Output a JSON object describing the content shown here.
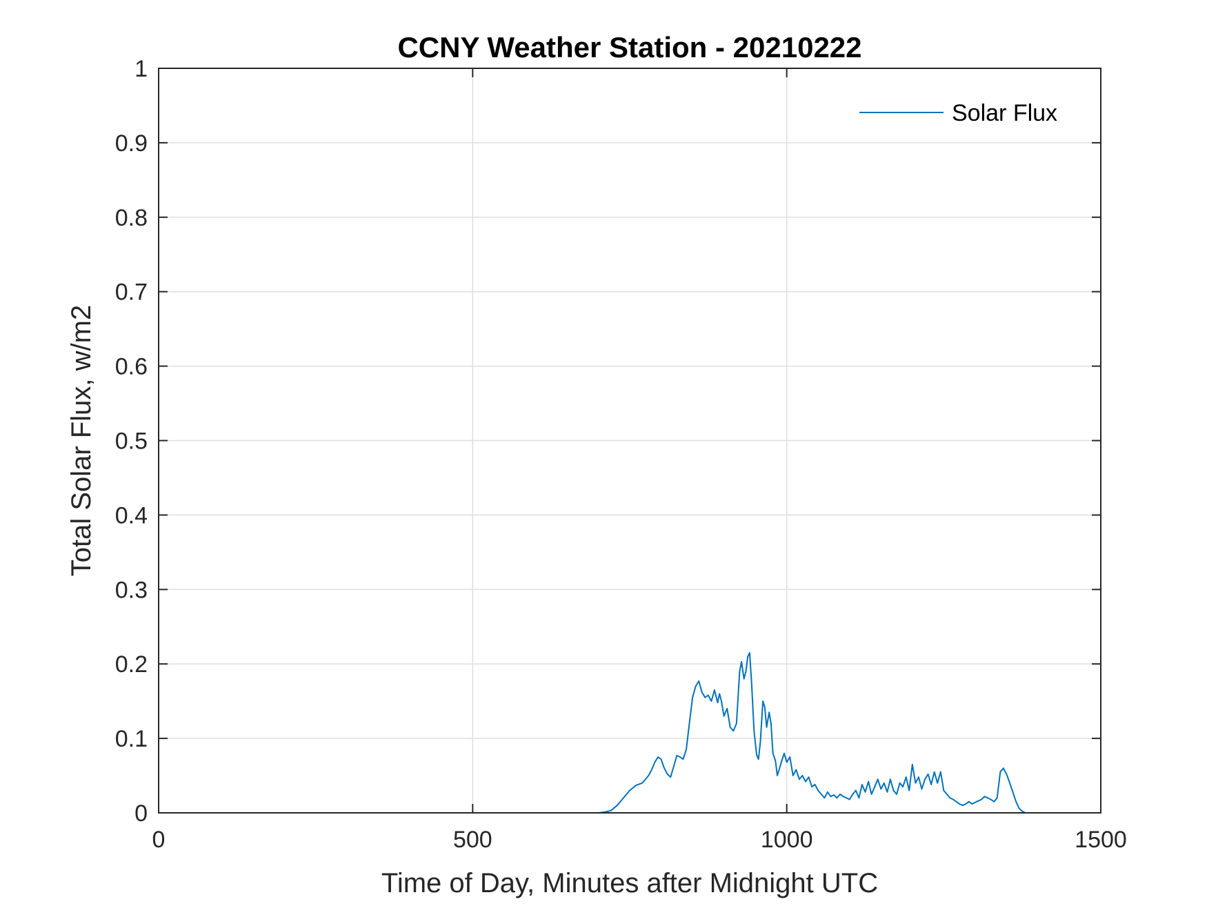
{
  "chart_data": {
    "type": "line",
    "title": "CCNY Weather Station - 20210222",
    "xlabel": "Time of Day, Minutes after Midnight UTC",
    "ylabel": "Total Solar Flux, w/m2",
    "xlim": [
      0,
      1500
    ],
    "ylim": [
      0,
      1
    ],
    "xticks": [
      0,
      500,
      1000,
      1500
    ],
    "xtick_labels": [
      "0",
      "500",
      "1000",
      "1500"
    ],
    "yticks": [
      0,
      0.1,
      0.2,
      0.3,
      0.4,
      0.5,
      0.6,
      0.7,
      0.8,
      0.9,
      1
    ],
    "ytick_labels": [
      "0",
      "0.1",
      "0.2",
      "0.3",
      "0.4",
      "0.5",
      "0.6",
      "0.7",
      "0.8",
      "0.9",
      "1"
    ],
    "grid": true,
    "legend_position": "top-right",
    "series": [
      {
        "name": "Solar Flux",
        "color": "#0072BD",
        "x": [
          0,
          700,
          710,
          720,
          730,
          740,
          750,
          760,
          770,
          775,
          780,
          785,
          790,
          795,
          800,
          805,
          810,
          815,
          820,
          825,
          830,
          835,
          840,
          845,
          850,
          855,
          860,
          865,
          870,
          875,
          880,
          885,
          890,
          893,
          896,
          900,
          905,
          910,
          915,
          920,
          925,
          928,
          932,
          935,
          938,
          941,
          944,
          948,
          952,
          955,
          958,
          962,
          965,
          968,
          972,
          975,
          978,
          982,
          985,
          988,
          992,
          996,
          1000,
          1005,
          1010,
          1015,
          1020,
          1025,
          1030,
          1035,
          1040,
          1045,
          1050,
          1055,
          1060,
          1065,
          1070,
          1075,
          1080,
          1085,
          1090,
          1095,
          1100,
          1105,
          1110,
          1115,
          1120,
          1125,
          1130,
          1135,
          1140,
          1145,
          1150,
          1155,
          1160,
          1165,
          1170,
          1175,
          1180,
          1185,
          1190,
          1195,
          1200,
          1205,
          1210,
          1215,
          1220,
          1225,
          1230,
          1235,
          1240,
          1245,
          1250,
          1255,
          1260,
          1265,
          1270,
          1275,
          1280,
          1285,
          1290,
          1295,
          1300,
          1305,
          1310,
          1315,
          1320,
          1325,
          1330,
          1335,
          1340,
          1345,
          1350,
          1355,
          1360,
          1365,
          1370,
          1375,
          1380,
          1385,
          1440
        ],
        "y": [
          0,
          0,
          0.001,
          0.003,
          0.01,
          0.02,
          0.03,
          0.037,
          0.04,
          0.045,
          0.05,
          0.058,
          0.068,
          0.075,
          0.072,
          0.06,
          0.052,
          0.048,
          0.062,
          0.077,
          0.075,
          0.072,
          0.085,
          0.12,
          0.155,
          0.17,
          0.177,
          0.162,
          0.155,
          0.158,
          0.15,
          0.165,
          0.148,
          0.16,
          0.15,
          0.13,
          0.14,
          0.115,
          0.11,
          0.12,
          0.19,
          0.203,
          0.18,
          0.19,
          0.21,
          0.215,
          0.175,
          0.11,
          0.078,
          0.072,
          0.095,
          0.15,
          0.142,
          0.115,
          0.135,
          0.12,
          0.08,
          0.07,
          0.05,
          0.058,
          0.07,
          0.08,
          0.068,
          0.075,
          0.05,
          0.058,
          0.045,
          0.05,
          0.042,
          0.048,
          0.035,
          0.038,
          0.03,
          0.025,
          0.02,
          0.028,
          0.022,
          0.024,
          0.02,
          0.025,
          0.022,
          0.02,
          0.018,
          0.025,
          0.03,
          0.02,
          0.038,
          0.028,
          0.042,
          0.025,
          0.035,
          0.045,
          0.032,
          0.04,
          0.028,
          0.045,
          0.03,
          0.025,
          0.04,
          0.035,
          0.048,
          0.03,
          0.065,
          0.04,
          0.048,
          0.032,
          0.045,
          0.052,
          0.038,
          0.055,
          0.04,
          0.055,
          0.03,
          0.025,
          0.02,
          0.018,
          0.015,
          0.012,
          0.01,
          0.012,
          0.015,
          0.012,
          0.014,
          0.016,
          0.018,
          0.022,
          0.02,
          0.018,
          0.015,
          0.02,
          0.055,
          0.06,
          0.052,
          0.04,
          0.028,
          0.015,
          0.006,
          0.002,
          0,
          0,
          0
        ]
      }
    ]
  }
}
